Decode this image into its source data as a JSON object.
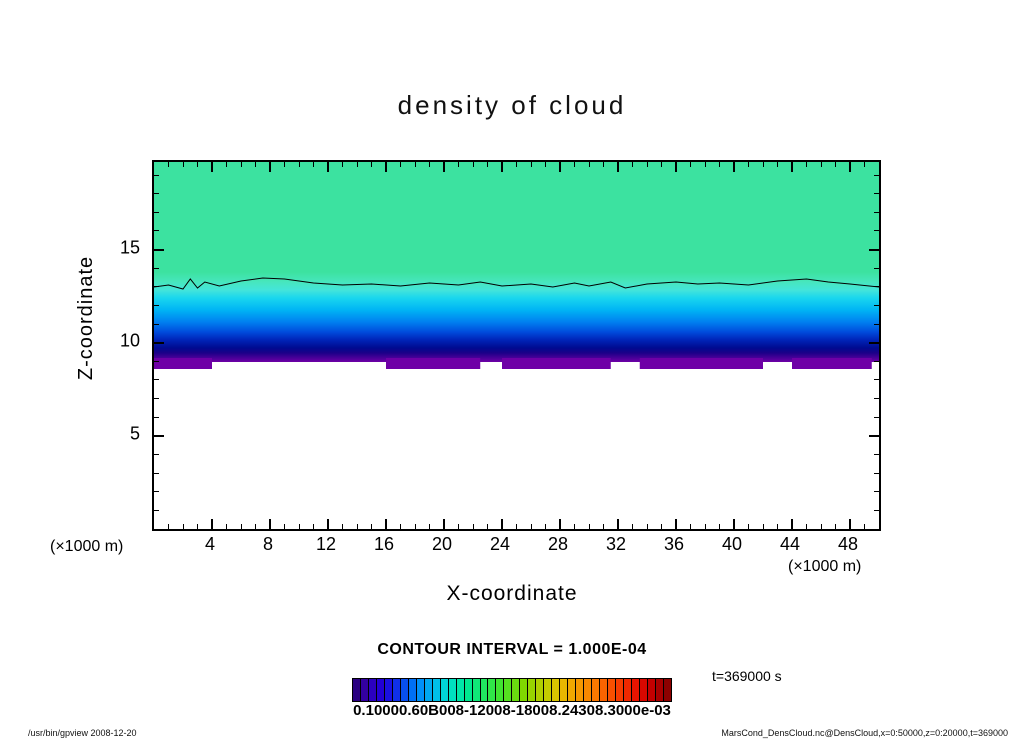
{
  "figure": {
    "title": "density of cloud",
    "contour_interval": "CONTOUR INTERVAL = 1.000E-04",
    "x_unit_left": "(×1000 m)",
    "x_unit_right": "(×1000 m)",
    "footer_left": "/usr/bin/gpview  2008-12-20",
    "footer_right": "MarsCond_DensCloud.nc@DensCloud,x=0:50000,z=0:20000,t=369000"
  },
  "axes": {
    "x": {
      "label": "X-coordinate",
      "majors": [
        4,
        8,
        12,
        16,
        20,
        24,
        28,
        32,
        36,
        40,
        44,
        48
      ],
      "minor_step": 1,
      "max": 50
    },
    "y": {
      "label": "Z-coordinate",
      "majors": [
        5,
        10,
        15
      ],
      "minor_step": 1,
      "max": 19.7
    }
  },
  "colorbar": {
    "label": "0.10000.60B008-12008-18008.24308.3000e-03",
    "time_label": "t=369000 s",
    "colors": [
      "#2A0080",
      "#3300A0",
      "#2B00C0",
      "#2200D5",
      "#1A10E0",
      "#1030E8",
      "#0850F0",
      "#0070F5",
      "#0090F8",
      "#00A8F0",
      "#00C0E8",
      "#00D4D8",
      "#00E0C0",
      "#00E6A8",
      "#00E890",
      "#10E878",
      "#20E860",
      "#30E648",
      "#40E430",
      "#55E020",
      "#6ADC10",
      "#80D800",
      "#98D400",
      "#B0D000",
      "#C4CC00",
      "#D8C400",
      "#E8B800",
      "#F0A800",
      "#F59800",
      "#F88800",
      "#FA7800",
      "#FA6400",
      "#F85000",
      "#F53C00",
      "#F02800",
      "#E81400",
      "#D80800",
      "#C40000",
      "#A80000",
      "#8C0000"
    ]
  },
  "chart_data": {
    "type": "heatmap",
    "title": "density of cloud",
    "xlabel": "X-coordinate (×1000 m)",
    "ylabel": "Z-coordinate (×1000 m)",
    "xlim": [
      0,
      50
    ],
    "ylim": [
      0,
      19.7
    ],
    "x_ticks": [
      4,
      8,
      12,
      16,
      20,
      24,
      28,
      32,
      36,
      40,
      44,
      48
    ],
    "y_ticks": [
      5,
      10,
      15
    ],
    "contour_interval": 0.0001,
    "colorbar_min_label": "0.1000e-03",
    "colorbar_max_label": "0.3000e-03",
    "time_seconds": 369000,
    "contour_line_z": 13.4,
    "bands": [
      {
        "z_range": [
          13.4,
          19.7
        ],
        "appearance": "uniform spring-green cloud density",
        "color": "#3CE2A0"
      },
      {
        "z_range": [
          9.6,
          13.4
        ],
        "appearance": "gradient cyan to deep blue, density decreasing downward",
        "color": "#00B4F4 to #000A90"
      },
      {
        "z_range": [
          8.8,
          9.6
        ],
        "appearance": "purple band with jagged lower edge",
        "color": "#6E00A6"
      },
      {
        "z_range": [
          0,
          8.8
        ],
        "appearance": "white, no cloud",
        "color": "#FFFFFF"
      }
    ]
  },
  "render": {
    "contour_line": [
      [
        0,
        125
      ],
      [
        0.02,
        123
      ],
      [
        0.04,
        127
      ],
      [
        0.05,
        117
      ],
      [
        0.06,
        126
      ],
      [
        0.07,
        120
      ],
      [
        0.09,
        124
      ],
      [
        0.12,
        119
      ],
      [
        0.15,
        116
      ],
      [
        0.18,
        117
      ],
      [
        0.22,
        121
      ],
      [
        0.26,
        123
      ],
      [
        0.3,
        122
      ],
      [
        0.34,
        124
      ],
      [
        0.38,
        121
      ],
      [
        0.42,
        123
      ],
      [
        0.45,
        120
      ],
      [
        0.48,
        124
      ],
      [
        0.52,
        122
      ],
      [
        0.55,
        125
      ],
      [
        0.58,
        121
      ],
      [
        0.6,
        124
      ],
      [
        0.63,
        120
      ],
      [
        0.65,
        126
      ],
      [
        0.68,
        122
      ],
      [
        0.72,
        120
      ],
      [
        0.75,
        122
      ],
      [
        0.78,
        121
      ],
      [
        0.82,
        123
      ],
      [
        0.86,
        119
      ],
      [
        0.9,
        117
      ],
      [
        0.93,
        120
      ],
      [
        0.96,
        122
      ],
      [
        1,
        125
      ]
    ],
    "purple_jags": [
      [
        0.0,
        0.08
      ],
      [
        0.32,
        0.45
      ],
      [
        0.48,
        0.63
      ],
      [
        0.67,
        0.84
      ],
      [
        0.88,
        0.99
      ]
    ]
  }
}
